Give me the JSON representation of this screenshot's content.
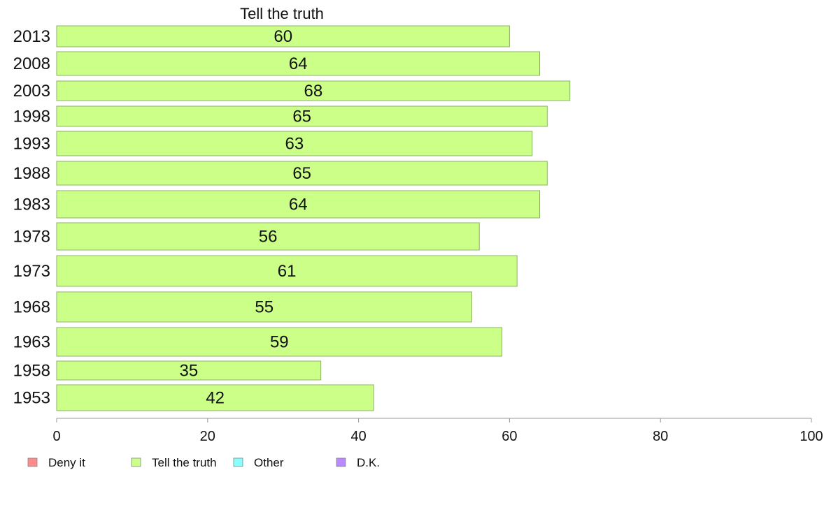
{
  "chart_data": {
    "type": "bar",
    "orientation": "horizontal",
    "title": "Tell the truth",
    "categories": [
      "2013",
      "2008",
      "2003",
      "1998",
      "1993",
      "1988",
      "1983",
      "1978",
      "1973",
      "1968",
      "1963",
      "1958",
      "1953"
    ],
    "series": [
      {
        "name": "Tell the truth",
        "values": [
          60,
          64,
          68,
          65,
          63,
          65,
          64,
          56,
          61,
          55,
          59,
          35,
          42
        ],
        "color": "#ccff88"
      }
    ],
    "xlim": [
      0,
      100
    ],
    "xticks": [
      0,
      20,
      40,
      60,
      80,
      100
    ],
    "legend": {
      "placement": "bottom-left",
      "entries": [
        {
          "label": "Deny it",
          "color": "#ff8c8c"
        },
        {
          "label": "Tell the truth",
          "color": "#ccff88"
        },
        {
          "label": "Other",
          "color": "#88ffff"
        },
        {
          "label": "D.K.",
          "color": "#bb88ff"
        }
      ]
    },
    "bar_border_color": "#8cb06a",
    "axis_color": "#999999"
  }
}
